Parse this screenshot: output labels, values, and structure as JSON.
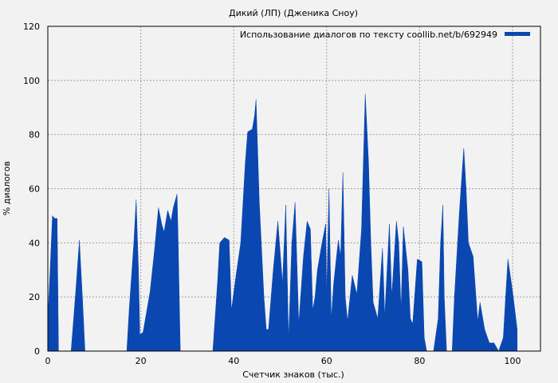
{
  "chart_data": {
    "type": "area",
    "title": "Дикий (ЛП) (Дженика Сноу)",
    "xlabel": "Счетчик знаков (тыс.)",
    "ylabel": "% диалогов",
    "xlim": [
      0,
      106
    ],
    "ylim": [
      0,
      120
    ],
    "x_ticks": [
      0,
      20,
      40,
      60,
      80,
      100
    ],
    "y_ticks": [
      0,
      20,
      40,
      60,
      80,
      100,
      120
    ],
    "grid": true,
    "legend_position": "top-right",
    "colors": {
      "series": "#0a47b0",
      "background": "#f2f2f2",
      "grid": "#a0a0a0"
    },
    "series": [
      {
        "name": "Использование диалогов по тексту coollib.net/b/692949",
        "points": [
          [
            0,
            12
          ],
          [
            0.5,
            30
          ],
          [
            1,
            50
          ],
          [
            1.5,
            49
          ],
          [
            2,
            49
          ],
          [
            2.3,
            0
          ],
          [
            5,
            0
          ],
          [
            6,
            22
          ],
          [
            6.8,
            41
          ],
          [
            7.5,
            18
          ],
          [
            8,
            0
          ],
          [
            17,
            0
          ],
          [
            17.5,
            15
          ],
          [
            18.5,
            40
          ],
          [
            19,
            56
          ],
          [
            19.5,
            30
          ],
          [
            19.8,
            6
          ],
          [
            20.5,
            7
          ],
          [
            22,
            22
          ],
          [
            23,
            38
          ],
          [
            23.8,
            53
          ],
          [
            24.5,
            47
          ],
          [
            25,
            44
          ],
          [
            25.8,
            52
          ],
          [
            26.5,
            48
          ],
          [
            27,
            53
          ],
          [
            27.8,
            58
          ],
          [
            28,
            45
          ],
          [
            28.5,
            0
          ],
          [
            35.5,
            0
          ],
          [
            36.5,
            25
          ],
          [
            37,
            40
          ],
          [
            38,
            42
          ],
          [
            39,
            41
          ],
          [
            39.5,
            15
          ],
          [
            40.5,
            28
          ],
          [
            41.5,
            40
          ],
          [
            42.5,
            70
          ],
          [
            43,
            81
          ],
          [
            44,
            82
          ],
          [
            44.5,
            87
          ],
          [
            44.8,
            93
          ],
          [
            45.5,
            55
          ],
          [
            46.5,
            20
          ],
          [
            47,
            8
          ],
          [
            47.5,
            8
          ],
          [
            48.5,
            30
          ],
          [
            49.5,
            48
          ],
          [
            50.5,
            25
          ],
          [
            51.2,
            54
          ],
          [
            51.8,
            4
          ],
          [
            52.5,
            40
          ],
          [
            53.2,
            55
          ],
          [
            54,
            10
          ],
          [
            55,
            35
          ],
          [
            55.8,
            48
          ],
          [
            56.5,
            45
          ],
          [
            57,
            15
          ],
          [
            57.5,
            20
          ],
          [
            58,
            30
          ],
          [
            59,
            40
          ],
          [
            59.8,
            47
          ],
          [
            60,
            20
          ],
          [
            60.5,
            60
          ],
          [
            61,
            12
          ],
          [
            61.5,
            25
          ],
          [
            62.5,
            41
          ],
          [
            63,
            35
          ],
          [
            63.5,
            66
          ],
          [
            64,
            20
          ],
          [
            64.5,
            11
          ],
          [
            65.5,
            28
          ],
          [
            66.5,
            21
          ],
          [
            67.5,
            45
          ],
          [
            68.3,
            95
          ],
          [
            69,
            70
          ],
          [
            69.5,
            40
          ],
          [
            70,
            18
          ],
          [
            71,
            12
          ],
          [
            72,
            38
          ],
          [
            72.5,
            13
          ],
          [
            73.5,
            47
          ],
          [
            74,
            20
          ],
          [
            75,
            48
          ],
          [
            75.5,
            40
          ],
          [
            76,
            15
          ],
          [
            76.5,
            46
          ],
          [
            77.5,
            30
          ],
          [
            78,
            12
          ],
          [
            78.5,
            10
          ],
          [
            79.5,
            34
          ],
          [
            80.5,
            33
          ],
          [
            81,
            5
          ],
          [
            81.5,
            0
          ],
          [
            83,
            0
          ],
          [
            84,
            12
          ],
          [
            84.5,
            40
          ],
          [
            85,
            54
          ],
          [
            85.3,
            20
          ],
          [
            85.8,
            0
          ],
          [
            87,
            0
          ],
          [
            87.5,
            20
          ],
          [
            88.5,
            50
          ],
          [
            89.5,
            75
          ],
          [
            90,
            60
          ],
          [
            90.5,
            40
          ],
          [
            91.5,
            35
          ],
          [
            92.5,
            11
          ],
          [
            93,
            18
          ],
          [
            94,
            8
          ],
          [
            95,
            3
          ],
          [
            96,
            3
          ],
          [
            97,
            0
          ],
          [
            98,
            5
          ],
          [
            98.5,
            20
          ],
          [
            99,
            34
          ],
          [
            100,
            22
          ],
          [
            100.5,
            15
          ],
          [
            101,
            8
          ]
        ]
      }
    ]
  }
}
